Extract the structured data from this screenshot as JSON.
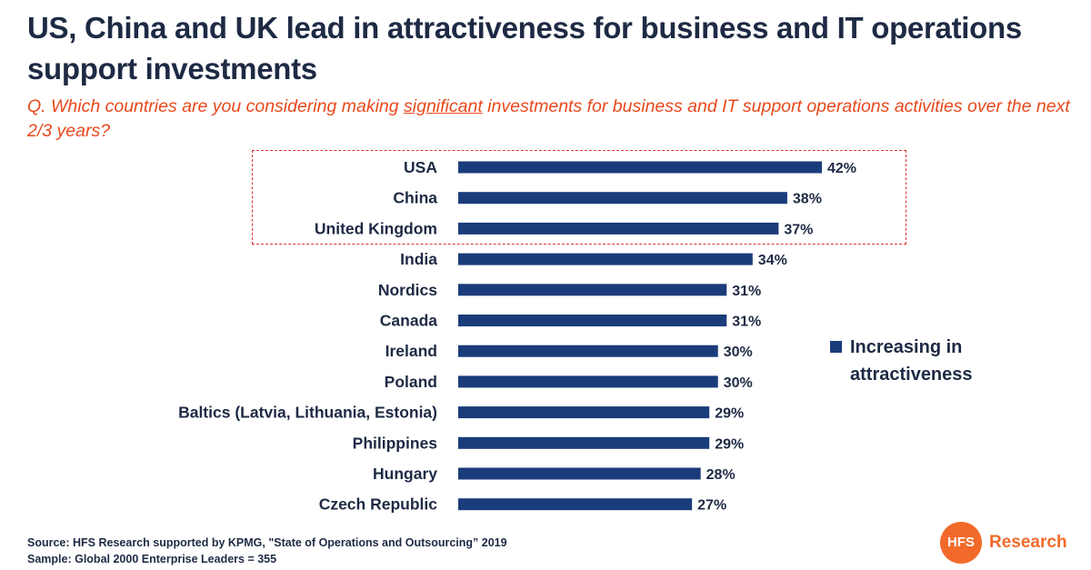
{
  "header": {
    "title": "US, China and UK lead in attractiveness for business and IT operations support investments",
    "question_before": "Q. Which countries are you considering making ",
    "question_emphasis": "significant",
    "question_after": " investments for business and IT support operations activities over the next 2/3 years?"
  },
  "chart_data": {
    "type": "bar",
    "orientation": "horizontal",
    "categories": [
      "USA",
      "China",
      "United Kingdom",
      "India",
      "Nordics",
      "Canada",
      "Ireland",
      "Poland",
      "Baltics (Latvia, Lithuania, Estonia)",
      "Philippines",
      "Hungary",
      "Czech Republic"
    ],
    "series": [
      {
        "name": "Increasing in attractiveness",
        "values": [
          42,
          38,
          37,
          34,
          31,
          31,
          30,
          30,
          29,
          29,
          28,
          27
        ],
        "color": "#1a3c7a"
      }
    ],
    "value_suffix": "%",
    "highlighted_categories": [
      "USA",
      "China",
      "United Kingdom"
    ],
    "highlight_color": "#d8343f",
    "xlim": [
      0,
      42
    ],
    "grid": false,
    "legend_position": "right"
  },
  "footer": {
    "source": "Source: HFS Research supported by KPMG, \"State of Operations and Outsourcing” 2019",
    "sample": "Sample: Global 2000 Enterprise Leaders = 355"
  },
  "logo": {
    "mark": "HFS",
    "text": "Research",
    "color": "#f26a2a"
  }
}
